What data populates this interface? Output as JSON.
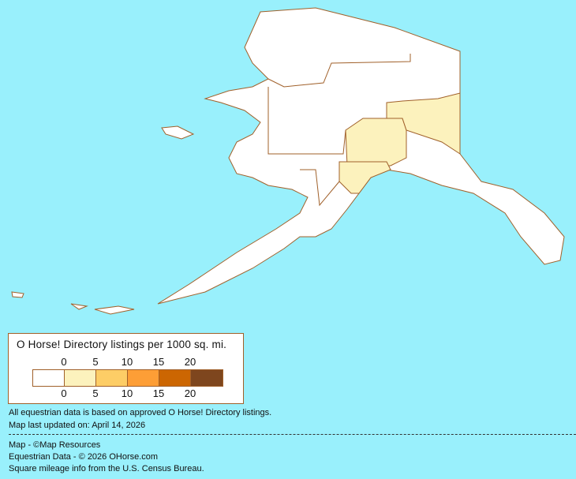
{
  "map": {
    "region": "Alaska",
    "colors": {
      "ocean": "#99f0fc",
      "border": "#a0602a"
    },
    "shaded_areas": [
      {
        "class": "0-5",
        "color": "#fcf2bd"
      }
    ]
  },
  "legend": {
    "title": "O Horse! Directory listings per 1000 sq. mi.",
    "top_ticks": [
      "0",
      "5",
      "10",
      "15",
      "20"
    ],
    "bottom_ticks": [
      "0",
      "5",
      "10",
      "15",
      "20"
    ],
    "bins": [
      {
        "range": "0",
        "color": "#ffffff"
      },
      {
        "range": "0-5",
        "color": "#fcf2bd"
      },
      {
        "range": "5-10",
        "color": "#fdcd66"
      },
      {
        "range": "10-15",
        "color": "#fd9e36"
      },
      {
        "range": "15-20",
        "color": "#cc6602"
      },
      {
        "range": "20+",
        "color": "#7e461e"
      }
    ]
  },
  "notes": {
    "data_basis": "All equestrian data is based on approved O Horse! Directory listings.",
    "updated": "Map last updated on: April 14, 2026"
  },
  "credits": {
    "map": "Map - ©Map Resources",
    "data": "Equestrian Data - © 2026 OHorse.com",
    "census": "Square mileage info from the U.S. Census Bureau."
  }
}
